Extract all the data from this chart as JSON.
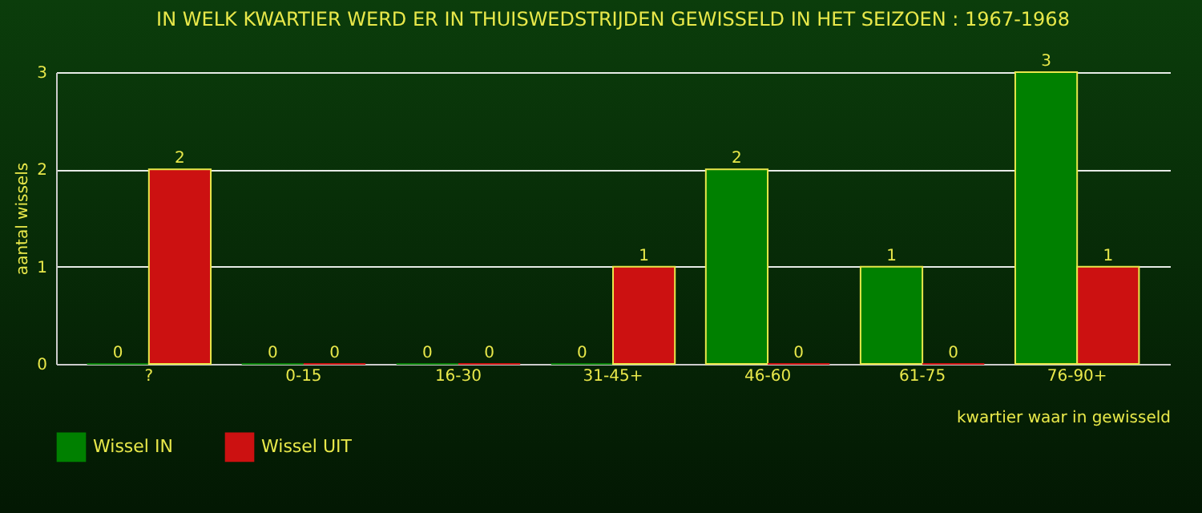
{
  "chart_data": {
    "type": "bar",
    "title": "IN WELK KWARTIER WERD ER IN THUISWEDSTRIJDEN GEWISSELD IN HET SEIZOEN : 1967-1968",
    "xlabel": "kwartier waar in gewisseld",
    "ylabel": "aantal wissels",
    "categories": [
      "?",
      "0-15",
      "16-30",
      "31-45+",
      "46-60",
      "61-75",
      "76-90+"
    ],
    "series": [
      {
        "name": "Wissel IN",
        "color": "#008000",
        "values": [
          0,
          0,
          0,
          0,
          2,
          1,
          3
        ]
      },
      {
        "name": "Wissel UIT",
        "color": "#cc1111",
        "values": [
          2,
          0,
          0,
          1,
          0,
          0,
          1
        ]
      }
    ],
    "ylim": [
      0,
      3
    ],
    "yticks": [
      0,
      1,
      2,
      3
    ],
    "grid": "y",
    "legend": "bottom",
    "data_labels": true
  }
}
